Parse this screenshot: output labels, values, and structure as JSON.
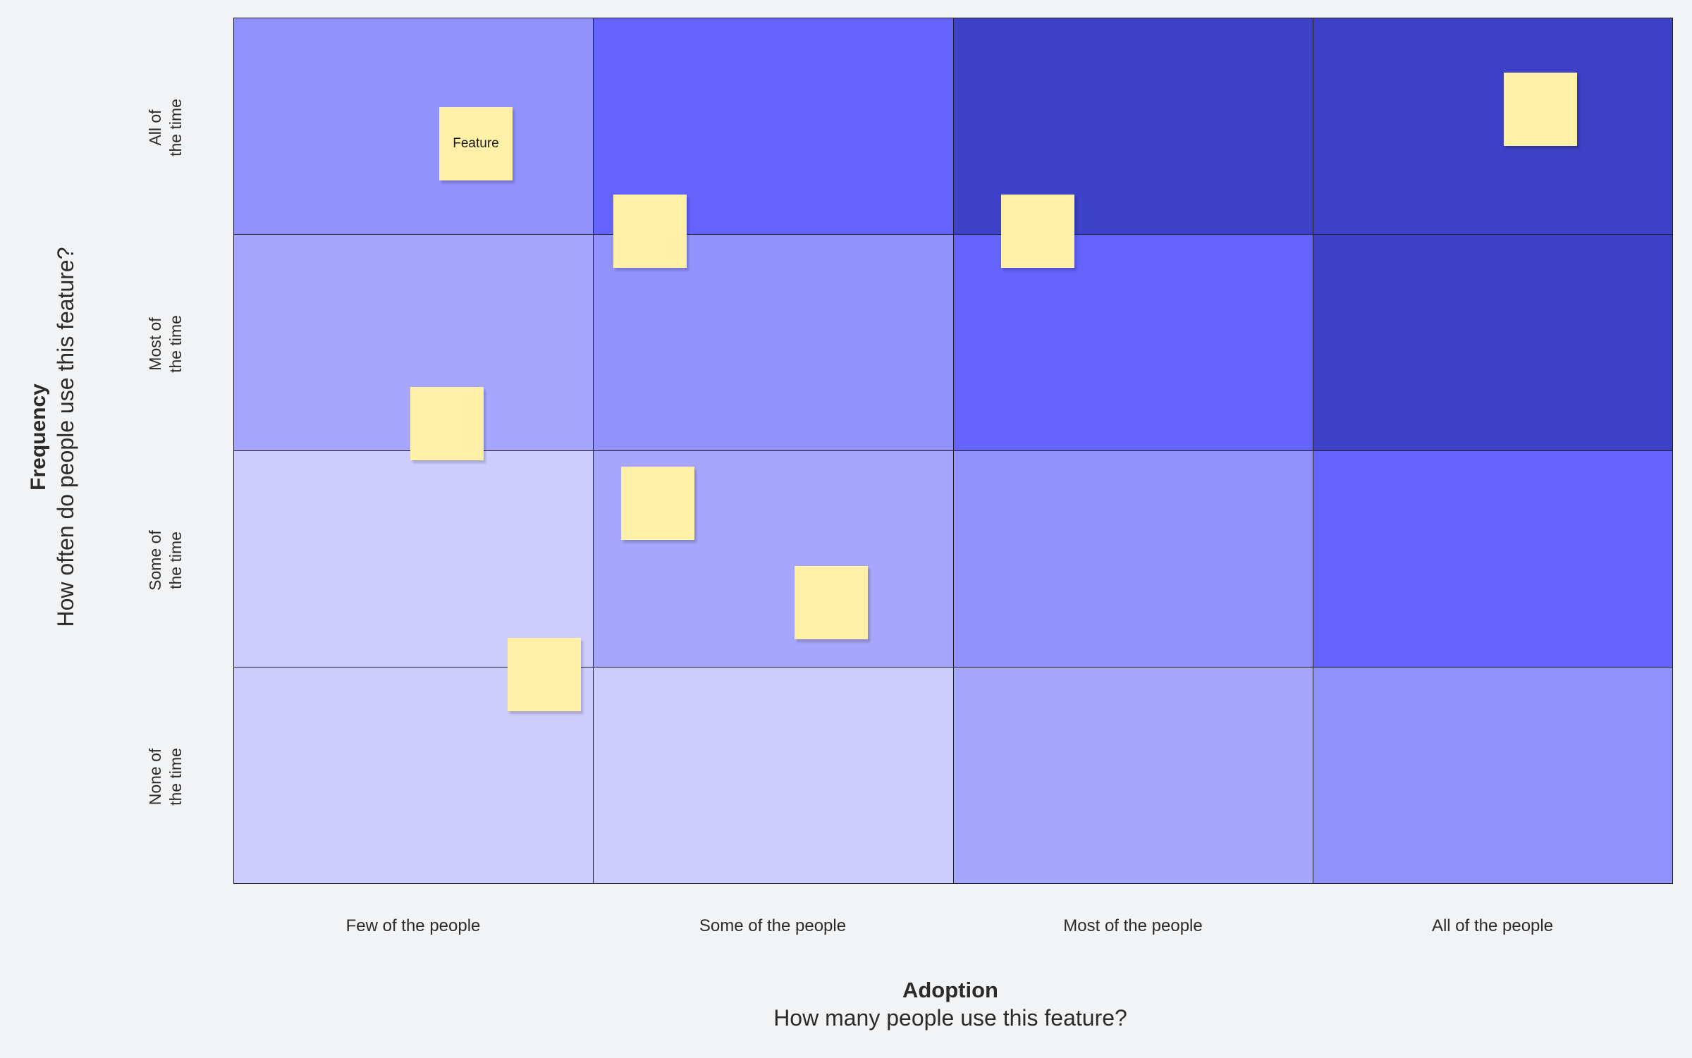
{
  "y_axis": {
    "title": "Frequency",
    "subtitle": "How often do people use this feature?",
    "levels": [
      {
        "line1": "All of",
        "line2": "the time"
      },
      {
        "line1": "Most of",
        "line2": "the time"
      },
      {
        "line1": "Some of",
        "line2": "the time"
      },
      {
        "line1": "None of",
        "line2": "the time"
      }
    ]
  },
  "x_axis": {
    "title": "Adoption",
    "subtitle": "How many people use this feature?",
    "levels": [
      "Few of the people",
      "Some of the people",
      "Most of the people",
      "All of the people"
    ]
  },
  "cell_colors": [
    [
      "#9292fd",
      "#6464fd",
      "#3c41c5",
      "#3c41c5"
    ],
    [
      "#a6a6fd",
      "#9292fd",
      "#6464fd",
      "#3c41c5"
    ],
    [
      "#cdcdfd",
      "#a6a6fd",
      "#9292fd",
      "#6464fd"
    ],
    [
      "#cdcdfd",
      "#cdcdfd",
      "#a6a6fd",
      "#9292fd"
    ]
  ],
  "sticky_color": "#fff0a8",
  "sticky_notes": [
    {
      "label": "Feature"
    },
    {
      "label": ""
    },
    {
      "label": ""
    },
    {
      "label": ""
    },
    {
      "label": ""
    },
    {
      "label": ""
    },
    {
      "label": ""
    },
    {
      "label": ""
    },
    {
      "label": ""
    }
  ]
}
